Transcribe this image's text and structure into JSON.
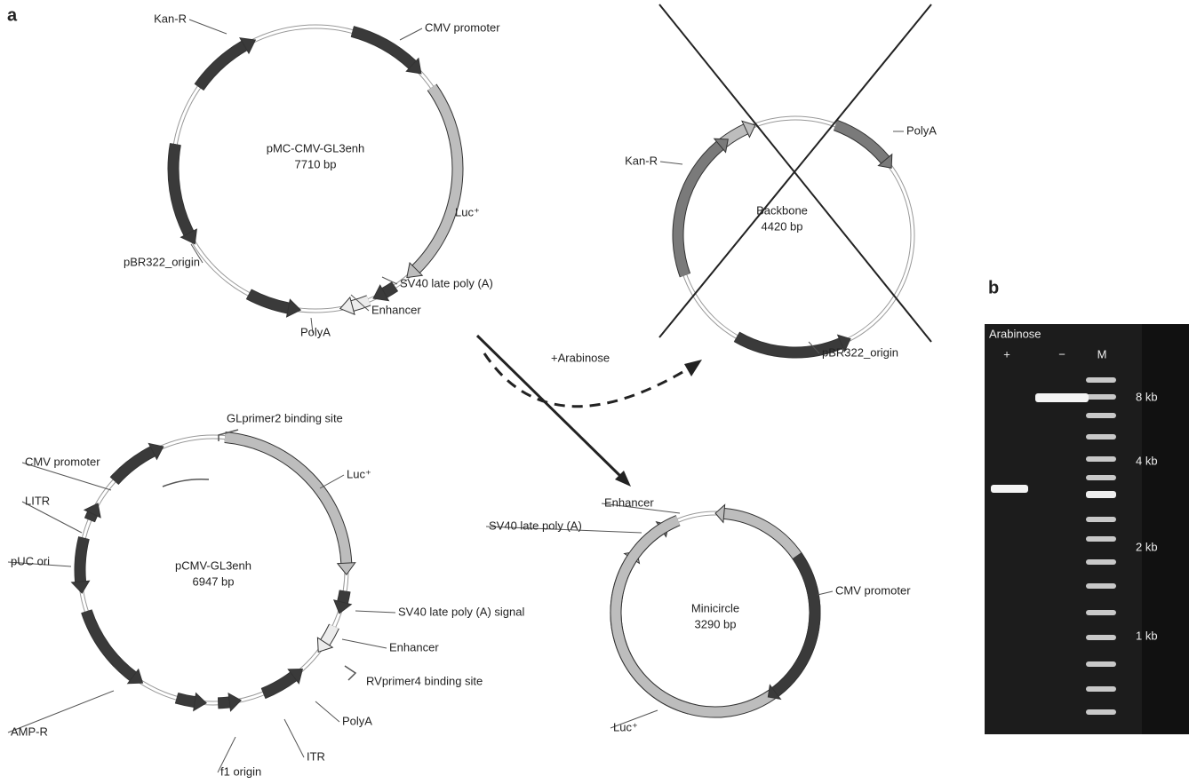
{
  "panels": {
    "a": "a",
    "b": "b"
  },
  "arrow_label": "+Arabinose",
  "plasmids": [
    {
      "name": "pMC-CMV-GL3enh",
      "size": "7710 bp",
      "features": [
        "Kan-R",
        "CMV promoter",
        "Luc⁺",
        "SV40 late poly (A)",
        "Enhancer",
        "PolyA",
        "pBR322_origin"
      ]
    },
    {
      "name": "Backbone",
      "size": "4420 bp",
      "features": [
        "Kan-R",
        "PolyA",
        "pBR322_origin"
      ]
    },
    {
      "name": "pCMV-GL3enh",
      "size": "6947 bp",
      "features": [
        "GLprimer2 binding site",
        "Luc⁺",
        "CMV promoter",
        "LITR",
        "pUC ori",
        "SV40 late poly (A) signal",
        "Enhancer",
        "RVprimer4 binding site",
        "PolyA",
        "AMP-R",
        "ITR",
        "f1 origin"
      ]
    },
    {
      "name": "Minicircle",
      "size": "3290 bp",
      "features": [
        "Enhancer",
        "SV40 late poly (A)",
        "CMV promoter",
        "Luc⁺"
      ]
    }
  ],
  "gel": {
    "title": "Arabinose",
    "lanes": [
      "+",
      "−",
      "M"
    ],
    "markers": [
      "8 kb",
      "4 kb",
      "2 kb",
      "1 kb"
    ]
  }
}
